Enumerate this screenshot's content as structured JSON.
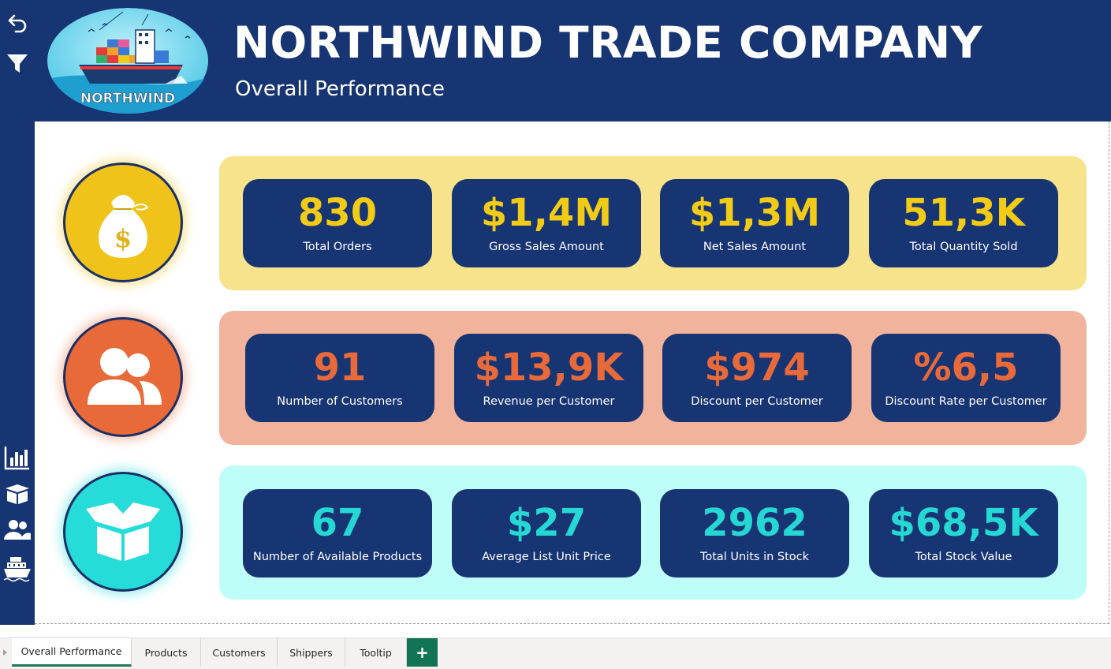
{
  "header": {
    "title": "NORTHWIND TRADE COMPANY",
    "subtitle": "Overall Performance",
    "logo_text": "NORTHWIND"
  },
  "sidebar": {
    "top_icons": [
      "back-arrow-icon",
      "filter-icon"
    ],
    "nav_icons": [
      "bar-chart-icon",
      "box-icon",
      "customers-icon",
      "ship-icon"
    ]
  },
  "rows": [
    {
      "icon": "money-bag-icon",
      "band_color": "#f7e38c",
      "value_color": "#f2cb17",
      "icon_bg": "#f0c31a",
      "cards": [
        {
          "value": "830",
          "label": "Total Orders"
        },
        {
          "value": "$1,4M",
          "label": "Gross Sales Amount"
        },
        {
          "value": "$1,3M",
          "label": "Net Sales Amount"
        },
        {
          "value": "51,3K",
          "label": "Total Quantity Sold"
        }
      ]
    },
    {
      "icon": "customers-icon",
      "band_color": "#f2b39d",
      "value_color": "#e8693a",
      "icon_bg": "#e86a39",
      "cards": [
        {
          "value": "91",
          "label": "Number of Customers"
        },
        {
          "value": "$13,9K",
          "label": "Revenue per Customer"
        },
        {
          "value": "$974",
          "label": "Discount per Customer"
        },
        {
          "value": "%6,5",
          "label": "Discount Rate per Customer"
        }
      ]
    },
    {
      "icon": "open-box-icon",
      "band_color": "#befdf8",
      "value_color": "#25d8d4",
      "icon_bg": "#26dcd8",
      "cards": [
        {
          "value": "67",
          "label": "Number of Available Products"
        },
        {
          "value": "$27",
          "label": "Average List Unit Price"
        },
        {
          "value": "2962",
          "label": "Total Units in Stock"
        },
        {
          "value": "$68,5K",
          "label": "Total Stock Value"
        }
      ]
    }
  ],
  "tabs": [
    {
      "label": "Overall Performance",
      "active": true
    },
    {
      "label": "Products",
      "active": false
    },
    {
      "label": "Customers",
      "active": false
    },
    {
      "label": "Shippers",
      "active": false
    },
    {
      "label": "Tooltip",
      "active": false
    }
  ],
  "add_tab_label": "+",
  "colors": {
    "navy": "#173473",
    "tab_accent": "#1f7a5a"
  }
}
